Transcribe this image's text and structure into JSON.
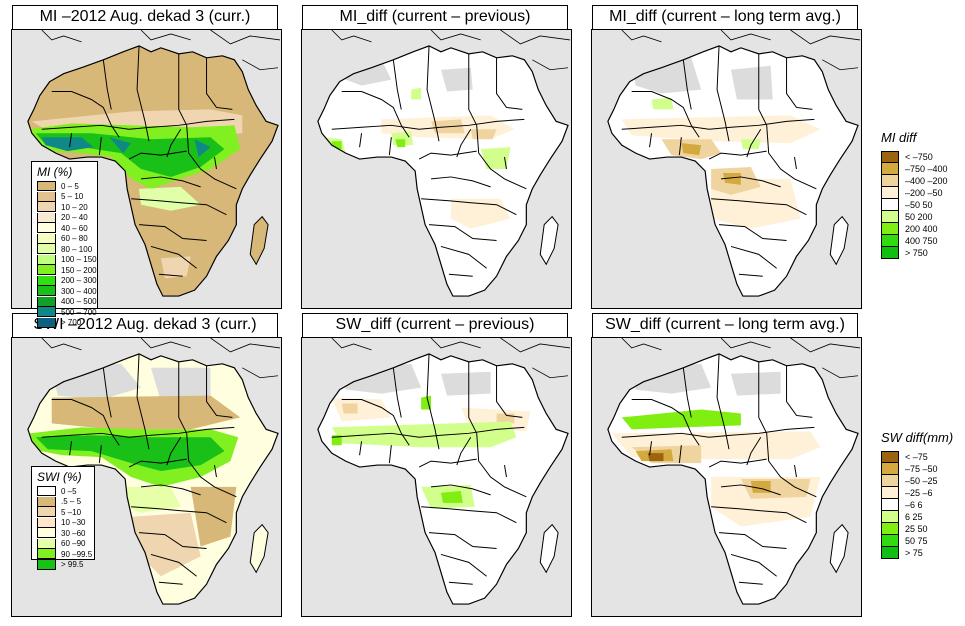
{
  "panels": [
    {
      "id": "mi-curr",
      "title": "MI –2012 Aug. dekad 3 (curr.)",
      "scheme": "mi"
    },
    {
      "id": "mi-diff-prev",
      "title": "MI_diff (current – previous)",
      "scheme": "diff-prev"
    },
    {
      "id": "mi-diff-lta",
      "title": "MI_diff (current – long term avg.)",
      "scheme": "diff-lta"
    },
    {
      "id": "swi-curr",
      "title": "SWI –2012 Aug. dekad 3 (curr.)",
      "scheme": "swi"
    },
    {
      "id": "sw-diff-prev",
      "title": "SW_diff (current – previous)",
      "scheme": "sw-prev"
    },
    {
      "id": "sw-diff-lta",
      "title": "SW_diff (current – long term avg.)",
      "scheme": "sw-lta"
    }
  ],
  "legends": {
    "mi": {
      "title": "MI (%)",
      "items": [
        {
          "label": "0 – 5",
          "color": "#d8b878"
        },
        {
          "label": "5 – 10",
          "color": "#e3c38d"
        },
        {
          "label": "10 – 20",
          "color": "#efd6b0"
        },
        {
          "label": "20 – 40",
          "color": "#fae9d2"
        },
        {
          "label": "40 – 60",
          "color": "#ffffe0"
        },
        {
          "label": "60 – 80",
          "color": "#f4ffbe"
        },
        {
          "label": "80 – 100",
          "color": "#e0ffa8"
        },
        {
          "label": "100 – 150",
          "color": "#c0ff80"
        },
        {
          "label": "150 – 200",
          "color": "#80f020"
        },
        {
          "label": "200 – 300",
          "color": "#30e010"
        },
        {
          "label": "300 – 400",
          "color": "#18c018"
        },
        {
          "label": "400 – 500",
          "color": "#12a028"
        },
        {
          "label": "500 – 700",
          "color": "#108888"
        },
        {
          "label": "> 700",
          "color": "#0e6080"
        }
      ]
    },
    "swi": {
      "title": "SWI (%)",
      "items": [
        {
          "label": "0 –5",
          "color": "#ffffff"
        },
        {
          "label": ".5 – 5",
          "color": "#d8b878"
        },
        {
          "label": "5 –10",
          "color": "#efd6b0"
        },
        {
          "label": "10 –30",
          "color": "#fde6cc"
        },
        {
          "label": "30 –60",
          "color": "#ffffe0"
        },
        {
          "label": "60 –90",
          "color": "#e6ffa8"
        },
        {
          "label": "90 –99.5",
          "color": "#80f020"
        },
        {
          "label": "> 99.5",
          "color": "#18c018"
        }
      ]
    },
    "mi_diff": {
      "title": "MI diff",
      "items": [
        {
          "label": "< –750",
          "color": "#9a6410"
        },
        {
          "label": "–750 –400",
          "color": "#d4aa40"
        },
        {
          "label": "–400 –200",
          "color": "#f0d4a0"
        },
        {
          "label": "–200  –50",
          "color": "#fff0d8"
        },
        {
          "label": "–50  50",
          "color": "#ffffff"
        },
        {
          "label": "50  200",
          "color": "#d2ff8c"
        },
        {
          "label": "200  400",
          "color": "#80ee10"
        },
        {
          "label": "400  750",
          "color": "#30dc10"
        },
        {
          "label": "> 750",
          "color": "#10c010"
        }
      ]
    },
    "sw_diff": {
      "title": "SW diff(mm)",
      "items": [
        {
          "label": "< –75",
          "color": "#9a6410"
        },
        {
          "label": "–75 –50",
          "color": "#d4aa40"
        },
        {
          "label": "–50 –25",
          "color": "#f0d4a0"
        },
        {
          "label": "–25  –6",
          "color": "#fff0d8"
        },
        {
          "label": "–6  6",
          "color": "#ffffff"
        },
        {
          "label": "6  25",
          "color": "#d2ff8c"
        },
        {
          "label": "25  50",
          "color": "#80ee10"
        },
        {
          "label": "50  75",
          "color": "#30dc10"
        },
        {
          "label": "> 75",
          "color": "#10c010"
        }
      ]
    }
  },
  "colors": {
    "ocean": "#e4e4e4",
    "border": "#000000",
    "nodata": "#dcdcdc"
  }
}
